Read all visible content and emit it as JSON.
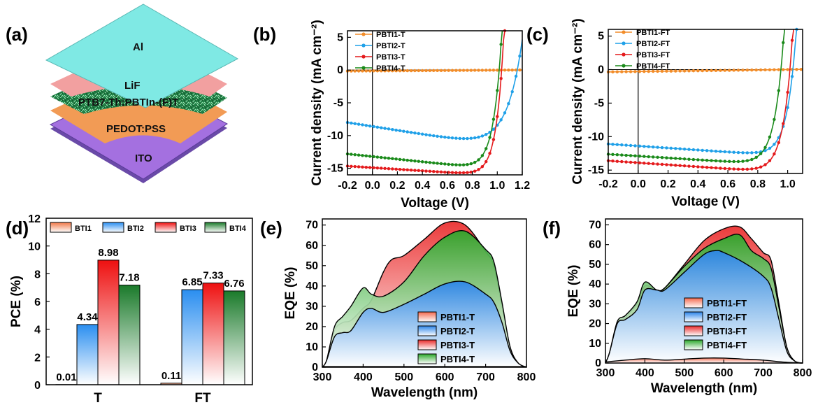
{
  "panel_labels": {
    "a": "(a)",
    "b": "(b)",
    "c": "(c)",
    "d": "(d)",
    "e": "(e)",
    "f": "(f)"
  },
  "device": {
    "layers": [
      {
        "label": "Al",
        "color": "#7fe9e4"
      },
      {
        "label": "LiF",
        "color": "#f2a0a0"
      },
      {
        "label": "PTB7-Th:PBTIn-(F)T",
        "color": "#1e8a4a"
      },
      {
        "label": "PEDOT:PSS",
        "color": "#f29b55"
      },
      {
        "label": "ITO",
        "color": "#a470e0"
      }
    ]
  },
  "colors": {
    "series1": "#f28c28",
    "series2": "#1fa0e8",
    "series3": "#e41a1c",
    "series4": "#1a8a1a",
    "eqe1": "#f46a4e",
    "eqe2": "#2a84ea",
    "eqe3": "#ea2a2a",
    "eqe4": "#2aa82a"
  },
  "chart_data": [
    {
      "id": "b",
      "type": "line",
      "xlabel": "Voltage (V)",
      "ylabel": "Current density (mA cm⁻²)",
      "xlim": [
        -0.2,
        1.2
      ],
      "ylim": [
        -16,
        6
      ],
      "xticks": [
        "-0.2",
        "0.0",
        "0.2",
        "0.4",
        "0.6",
        "0.8",
        "1.0",
        "1.2"
      ],
      "yticks": [
        "5",
        "0",
        "-5",
        "-10",
        "-15"
      ],
      "series": [
        {
          "name": "PBTI1-T",
          "jsc": 0.15,
          "voc": 1.1,
          "slope": 0.0,
          "n": 0.15
        },
        {
          "name": "PBTI2-T",
          "jsc": 8.6,
          "voc": 1.16,
          "slope": 3.0,
          "n": 0.12
        },
        {
          "name": "PBTI3-T",
          "jsc": 14.9,
          "voc": 1.035,
          "slope": 1.2,
          "n": 0.06
        },
        {
          "name": "PBTI4-T",
          "jsc": 13.2,
          "voc": 1.015,
          "slope": 2.0,
          "n": 0.065
        }
      ]
    },
    {
      "id": "c",
      "type": "line",
      "xlabel": "Voltage (V)",
      "ylabel": "Current density (mA cm⁻²)",
      "xlim": [
        -0.2,
        1.1
      ],
      "ylim": [
        -15.5,
        6
      ],
      "xticks": [
        "-0.2",
        "0.0",
        "0.2",
        "0.4",
        "0.6",
        "0.8",
        "1.0"
      ],
      "yticks": [
        "5",
        "0",
        "-5",
        "-10",
        "-15"
      ],
      "series": [
        {
          "name": "PBTI1-FT",
          "jsc": 0.35,
          "voc": 0.98,
          "slope": 0.0,
          "n": 0.15
        },
        {
          "name": "PBTI2-FT",
          "jsc": 11.4,
          "voc": 1.035,
          "slope": 1.5,
          "n": 0.06
        },
        {
          "name": "PBTI3-FT",
          "jsc": 13.9,
          "voc": 1.015,
          "slope": 1.5,
          "n": 0.06
        },
        {
          "name": "PBTI4-FT",
          "jsc": 12.9,
          "voc": 0.955,
          "slope": 1.4,
          "n": 0.06
        }
      ]
    },
    {
      "id": "d",
      "type": "bar",
      "ylabel": "PCE (%)",
      "ylim": [
        0,
        12
      ],
      "yticks": [
        "0",
        "2",
        "4",
        "6",
        "8",
        "10",
        "12"
      ],
      "categories": [
        "T",
        "FT"
      ],
      "category_colors": [
        "#e8338a",
        "#1a9a8a"
      ],
      "legend": [
        "BTI1",
        "BTI2",
        "BTI3",
        "BTI4"
      ],
      "series": [
        {
          "name": "BTI1",
          "values": [
            0.01,
            0.11
          ],
          "labels": [
            "0.01",
            "0.11"
          ]
        },
        {
          "name": "BTI2",
          "values": [
            4.34,
            6.85
          ],
          "labels": [
            "4.34",
            "6.85"
          ]
        },
        {
          "name": "BTI3",
          "values": [
            8.98,
            7.33
          ],
          "labels": [
            "8.98",
            "7.33"
          ]
        },
        {
          "name": "BTI4",
          "values": [
            7.18,
            6.76
          ],
          "labels": [
            "7.18",
            "6.76"
          ]
        }
      ]
    },
    {
      "id": "e",
      "type": "area",
      "xlabel": "Wavelength (nm)",
      "ylabel": "EQE (%)",
      "xlim": [
        300,
        800
      ],
      "ylim": [
        0,
        73
      ],
      "xticks": [
        "300",
        "400",
        "500",
        "600",
        "700",
        "800"
      ],
      "yticks": [
        "0",
        "10",
        "20",
        "30",
        "40",
        "50",
        "60",
        "70"
      ],
      "series": [
        {
          "name": "PBTI1-T",
          "x": [
            300,
            800
          ],
          "y": [
            0.3,
            0.3
          ]
        },
        {
          "name": "PBTI2-T",
          "x": [
            300,
            310,
            330,
            350,
            370,
            400,
            420,
            450,
            500,
            550,
            600,
            650,
            700,
            720,
            740,
            760,
            780,
            800
          ],
          "y": [
            0,
            3,
            15,
            17,
            18,
            27,
            29,
            27,
            31,
            36,
            41,
            42,
            36,
            32,
            22,
            8,
            2,
            0
          ]
        },
        {
          "name": "PBTI3-T",
          "x": [
            300,
            310,
            330,
            350,
            370,
            400,
            420,
            450,
            470,
            500,
            550,
            600,
            650,
            700,
            720,
            740,
            760,
            780,
            800
          ],
          "y": [
            0,
            3,
            18,
            22,
            23,
            29,
            33,
            47,
            53,
            55,
            63,
            71,
            70,
            57,
            50,
            30,
            10,
            2,
            0
          ]
        },
        {
          "name": "PBTI4-T",
          "x": [
            300,
            310,
            330,
            350,
            370,
            400,
            420,
            450,
            500,
            550,
            600,
            650,
            700,
            720,
            740,
            760,
            780,
            800
          ],
          "y": [
            0,
            3,
            20,
            25,
            30,
            39,
            36,
            35,
            42,
            55,
            64,
            67,
            58,
            52,
            32,
            10,
            2,
            0
          ]
        }
      ]
    },
    {
      "id": "f",
      "type": "area",
      "xlabel": "Wavelength (nm)",
      "ylabel": "EQE (%)",
      "xlim": [
        300,
        800
      ],
      "ylim": [
        0,
        73
      ],
      "xticks": [
        "300",
        "400",
        "500",
        "600",
        "700",
        "800"
      ],
      "yticks": [
        "0",
        "10",
        "20",
        "30",
        "40",
        "50",
        "60",
        "70"
      ],
      "series": [
        {
          "name": "PBTI1-FT",
          "x": [
            300,
            350,
            400,
            450,
            500,
            550,
            600,
            650,
            700,
            750,
            800
          ],
          "y": [
            0.5,
            1.5,
            2.2,
            1.5,
            2,
            2.5,
            2.5,
            2,
            1.5,
            0.5,
            0
          ]
        },
        {
          "name": "PBTI2-FT",
          "x": [
            300,
            310,
            330,
            350,
            380,
            400,
            430,
            450,
            500,
            550,
            580,
            600,
            650,
            700,
            720,
            740,
            760,
            780,
            800
          ],
          "y": [
            0,
            5,
            20,
            22,
            27,
            37,
            37,
            37,
            46,
            55,
            57,
            56,
            51,
            44,
            38,
            22,
            6,
            1,
            0
          ]
        },
        {
          "name": "PBTI3-FT",
          "x": [
            300,
            310,
            330,
            350,
            380,
            400,
            430,
            450,
            500,
            550,
            600,
            640,
            670,
            700,
            720,
            740,
            760,
            780,
            800
          ],
          "y": [
            0,
            5,
            20,
            23,
            30,
            39,
            37,
            38,
            50,
            62,
            68,
            69,
            63,
            56,
            52,
            30,
            8,
            1,
            0
          ]
        },
        {
          "name": "PBTI4-FT",
          "x": [
            300,
            310,
            330,
            350,
            380,
            400,
            430,
            450,
            500,
            550,
            600,
            640,
            670,
            700,
            720,
            740,
            760,
            780,
            800
          ],
          "y": [
            0,
            5,
            21,
            24,
            31,
            41,
            37,
            38,
            49,
            58,
            63,
            65,
            57,
            53,
            48,
            28,
            8,
            1,
            0
          ]
        }
      ]
    }
  ]
}
